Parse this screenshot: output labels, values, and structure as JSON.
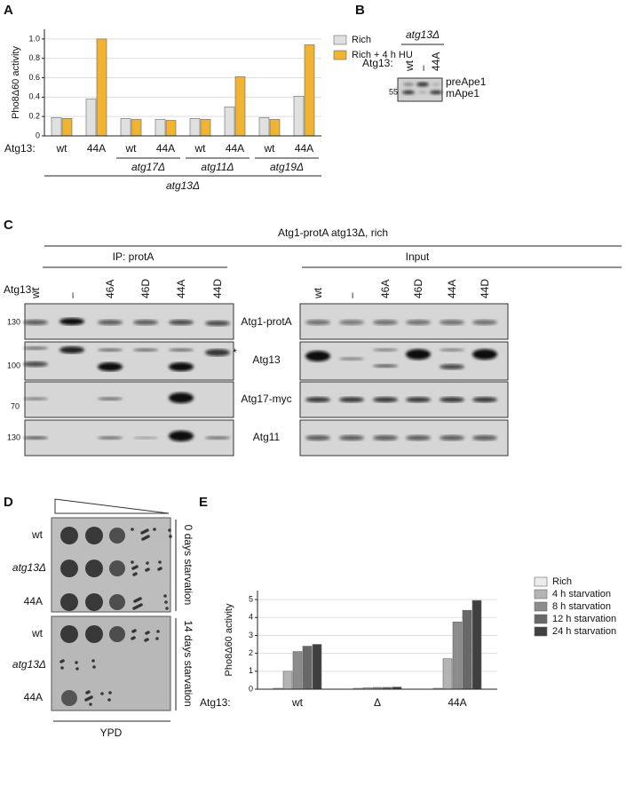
{
  "panel_labels": [
    "A",
    "B",
    "C",
    "D",
    "E"
  ],
  "chart_data": [
    {
      "type": "bar",
      "y_label": "Pho8Δ60 activity",
      "x_prefix": "Atg13:",
      "categories": [
        "wt",
        "44A",
        "wt",
        "44A",
        "wt",
        "44A",
        "wt",
        "44A"
      ],
      "series": [
        {
          "name": "Rich",
          "color": "#e0e0e0",
          "values": [
            0.19,
            0.38,
            0.18,
            0.17,
            0.18,
            0.3,
            0.19,
            0.41
          ]
        },
        {
          "name": "Rich + 4 h HU",
          "color": "#f0b432",
          "values": [
            0.18,
            1.0,
            0.17,
            0.16,
            0.17,
            0.61,
            0.17,
            0.94
          ]
        }
      ],
      "ylim": [
        0,
        1.1
      ],
      "yticks": [
        0,
        0.2,
        0.4,
        0.6,
        0.8,
        {
          "value": 1,
          "label": "1.0"
        }
      ],
      "grid": true,
      "groups": [
        "atg17Δ",
        "atg11Δ",
        "atg19Δ"
      ],
      "strain": "atg13Δ"
    },
    {
      "type": "bar",
      "y_label": "Pho8Δ60 activity",
      "x_prefix": "Atg13:",
      "categories": [
        "wt",
        "Δ",
        "44A"
      ],
      "series": [
        {
          "name": "Rich",
          "color": "#ececec",
          "values": [
            0.05,
            0.05,
            0.05
          ]
        },
        {
          "name": "4 h starvation",
          "color": "#b4b4b4",
          "values": [
            1.0,
            0.08,
            1.7
          ]
        },
        {
          "name": "8 h starvation",
          "color": "#8c8c8c",
          "values": [
            2.1,
            0.1,
            3.75
          ]
        },
        {
          "name": "12 h starvation",
          "color": "#686868",
          "values": [
            2.4,
            0.1,
            4.4
          ]
        },
        {
          "name": "24 h starvation",
          "color": "#404040",
          "values": [
            2.5,
            0.12,
            4.95
          ]
        }
      ],
      "ylim": [
        0,
        5.5
      ],
      "yticks": [
        0,
        1,
        2,
        3,
        4,
        5
      ],
      "grid": true
    }
  ],
  "blot_B": {
    "title": "atg13Δ",
    "lane_prefix": "Atg13:",
    "lanes": [
      "wt",
      "–",
      "44A"
    ],
    "marker": 55,
    "bands": [
      "preApe1",
      "mApe1"
    ]
  },
  "blot_C": {
    "title": "Atg1-protA atg13Δ, rich",
    "ip_title": "IP: protA",
    "input_title": "Input",
    "lane_prefix": "Atg13:",
    "ip_lanes": [
      "wt",
      "–",
      "46A",
      "46D",
      "44A",
      "44D"
    ],
    "input_lanes": [
      "wt",
      "–",
      "46A",
      "46D",
      "44A",
      "44D"
    ],
    "rows": [
      "Atg1-protA",
      "Atg13",
      "Atg17-myc",
      "Atg11"
    ],
    "markers": [
      130,
      100,
      70,
      130
    ],
    "asterisk": "*"
  },
  "spot_D": {
    "rows": [
      "wt",
      "atg13Δ",
      "44A"
    ],
    "conditions": [
      "0 days starvation",
      "14 days starvation"
    ],
    "medium": "YPD"
  }
}
